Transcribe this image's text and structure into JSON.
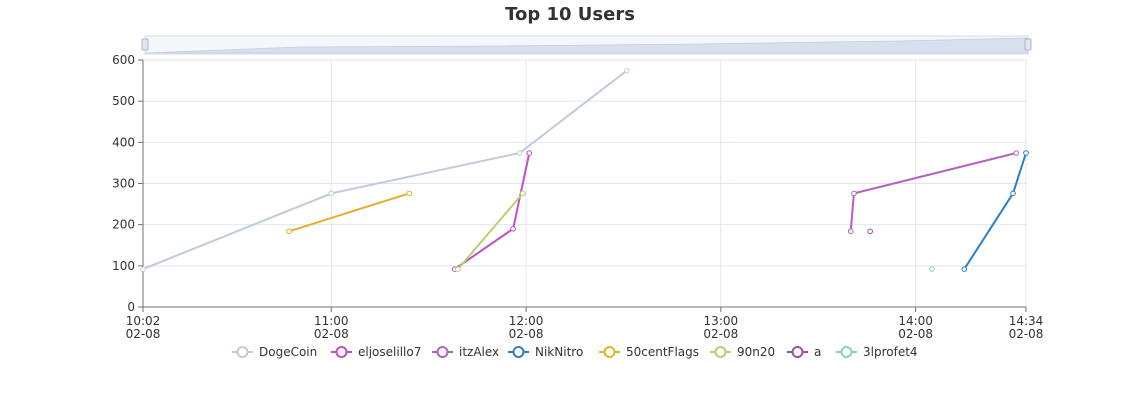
{
  "chart_data": {
    "type": "line",
    "title": "Top 10 Users",
    "xlabel": "",
    "ylabel": "",
    "ylim": [
      0,
      600
    ],
    "yticks": [
      "0",
      "100",
      "200",
      "300",
      "400",
      "500",
      "600"
    ],
    "xlim": [
      "02-08 10:02",
      "02-08 14:34"
    ],
    "xticks": [
      {
        "t": "02-08 10:02",
        "time": "10:02",
        "date": "02-08"
      },
      {
        "t": "02-08 11:00",
        "time": "11:00",
        "date": "02-08"
      },
      {
        "t": "02-08 12:00",
        "time": "12:00",
        "date": "02-08"
      },
      {
        "t": "02-08 13:00",
        "time": "13:00",
        "date": "02-08"
      },
      {
        "t": "02-08 14:00",
        "time": "14:00",
        "date": "02-08"
      },
      {
        "t": "02-08 14:34",
        "time": "14:34",
        "date": "02-08"
      }
    ],
    "grid": true,
    "legend_position": "bottom",
    "data_zoom": true,
    "series": [
      {
        "name": "DogeCoin",
        "color": "#bfcbdb",
        "points": [
          [
            "02-08 10:02",
            92
          ],
          [
            "02-08 11:00",
            276
          ],
          [
            "02-08 11:58",
            374
          ],
          [
            "02-08 12:31",
            574
          ]
        ]
      },
      {
        "name": "eljoselillo7",
        "color": "#c14fc8",
        "points": [
          [
            "02-08 11:38",
            92
          ],
          [
            "02-08 11:56",
            190
          ],
          [
            "02-08 12:01",
            374
          ]
        ]
      },
      {
        "name": "itzAlex",
        "color": "#b264bd",
        "points": [
          [
            "02-08 13:40",
            184
          ],
          [
            "02-08 13:41",
            276
          ],
          [
            "02-08 14:31",
            374
          ]
        ]
      },
      {
        "name": "NikNitro",
        "color": "#2b7fc3",
        "points": [
          [
            "02-08 14:15",
            92
          ],
          [
            "02-08 14:30",
            276
          ],
          [
            "02-08 14:34",
            374
          ]
        ]
      },
      {
        "name": "50centFlags",
        "color": "#e3af30",
        "points": [
          [
            "02-08 10:47",
            184
          ],
          [
            "02-08 11:24",
            276
          ]
        ]
      },
      {
        "name": "90n20",
        "color": "#b7d06b",
        "points": [
          [
            "02-08 11:39",
            92
          ],
          [
            "02-08 11:59",
            276
          ]
        ]
      },
      {
        "name": "a",
        "color": "#a0519b",
        "points": [
          [
            "02-08 13:46",
            184
          ]
        ]
      },
      {
        "name": "3lprofet4",
        "color": "#8ccfb5",
        "points": [
          [
            "02-08 14:05",
            92
          ]
        ]
      }
    ]
  }
}
